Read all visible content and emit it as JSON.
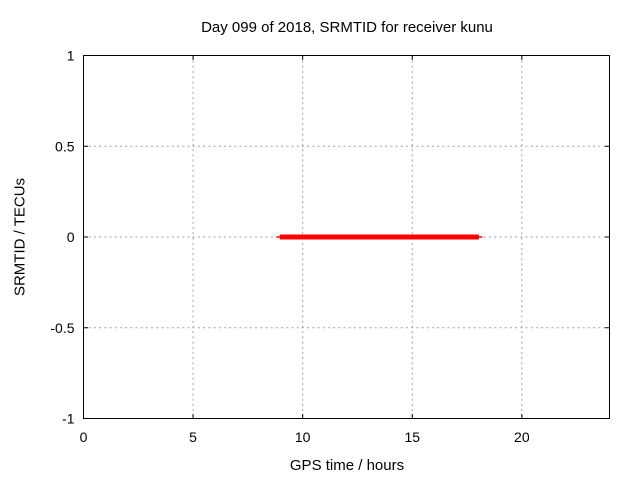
{
  "figure": {
    "background": "#ffffff",
    "text_color": "#000000"
  },
  "chart_data": {
    "type": "line",
    "title": "Day 099 of 2018, SRMTID for receiver kunu",
    "xlabel": "GPS time / hours",
    "ylabel": "SRMTID / TECUs",
    "xlim": [
      0,
      24
    ],
    "ylim": [
      -1,
      1
    ],
    "xticks": [
      0,
      5,
      10,
      15,
      20
    ],
    "xtick_labels": [
      "0",
      "5",
      "10",
      "15",
      "20"
    ],
    "yticks": [
      -1,
      -0.5,
      0,
      0.5,
      1
    ],
    "ytick_labels": [
      "-1",
      "-0.5",
      "0",
      "0.5",
      "1"
    ],
    "grid": true,
    "grid_style": "dotted",
    "grid_color": "#a0a0a0",
    "frame_color": "#000000",
    "legend": "none",
    "series": [
      {
        "name": "SRMTID",
        "color": "#ff0000",
        "y_value": 0,
        "x_start": 8.8,
        "x_end": 18.2,
        "points": [
          [
            8.8,
            0
          ],
          [
            18.2,
            0
          ]
        ]
      }
    ]
  }
}
